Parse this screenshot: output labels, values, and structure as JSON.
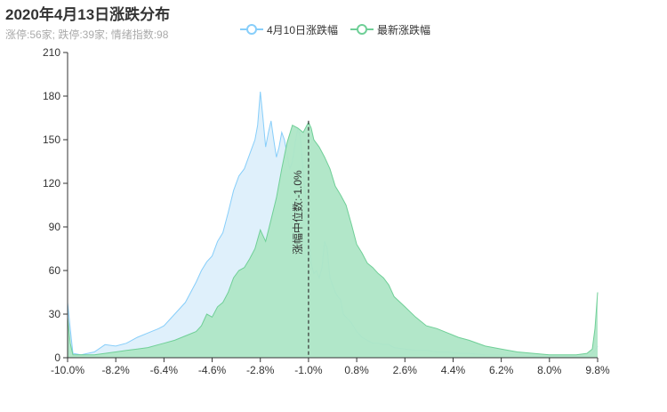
{
  "title": "2020年4月13日涨跌分布",
  "subtitle": "涨停:56家; 跌停:39家; 情绪指数:98",
  "colors": {
    "series1_line": "#87cefa",
    "series1_fill": "#dff0fb",
    "series2_line": "#6fcf97",
    "series2_fill": "#aee6c6",
    "median_line": "#333333",
    "axis": "#333333"
  },
  "legend": [
    {
      "label": "4月10日涨跌幅",
      "icon": "circle-line-icon",
      "color": "#87cefa"
    },
    {
      "label": "最新涨跌幅",
      "icon": "circle-line-icon",
      "color": "#6fcf97"
    }
  ],
  "chart_data": {
    "type": "area",
    "x_tick_labels": [
      "-10.0%",
      "-8.2%",
      "-6.4%",
      "-4.6%",
      "-2.8%",
      "-1.0%",
      "0.8%",
      "2.6%",
      "4.4%",
      "6.2%",
      "8.0%",
      "9.8%"
    ],
    "xlim": [
      -10.0,
      9.8
    ],
    "ylim": [
      0,
      210
    ],
    "y_ticks": [
      0,
      30,
      60,
      90,
      120,
      150,
      180,
      210
    ],
    "grid": false,
    "legend_position": "top-center",
    "median": {
      "x": -1.0,
      "label": "涨幅中位数:-1.0%"
    },
    "series": [
      {
        "name": "4月10日涨跌幅",
        "x": [
          -10.0,
          -9.9,
          -9.8,
          -9.5,
          -9.0,
          -8.6,
          -8.2,
          -7.8,
          -7.4,
          -7.0,
          -6.6,
          -6.4,
          -6.0,
          -5.6,
          -5.2,
          -5.0,
          -4.8,
          -4.6,
          -4.4,
          -4.2,
          -4.0,
          -3.8,
          -3.6,
          -3.4,
          -3.2,
          -3.0,
          -2.9,
          -2.8,
          -2.7,
          -2.6,
          -2.5,
          -2.4,
          -2.3,
          -2.2,
          -2.1,
          -2.0,
          -1.9,
          -1.8,
          -1.7,
          -1.6,
          -1.5,
          -1.4,
          -1.3,
          -1.2,
          -1.1,
          -1.0,
          -0.9,
          -0.8,
          -0.7,
          -0.6,
          -0.5,
          -0.4,
          -0.3,
          -0.2,
          -0.1,
          0.0,
          0.1,
          0.2,
          0.3,
          0.4,
          0.6,
          0.8,
          1.0,
          1.2,
          1.4,
          1.6,
          1.8,
          2.0,
          2.2,
          2.6,
          3.0,
          3.4,
          3.8,
          4.2,
          4.6,
          5.0,
          5.6,
          6.2,
          6.8,
          7.4,
          8.0,
          8.6,
          9.2,
          9.5,
          9.7,
          9.8
        ],
        "y": [
          38,
          20,
          3,
          2,
          4,
          9,
          8,
          10,
          14,
          17,
          20,
          22,
          30,
          38,
          52,
          60,
          66,
          70,
          80,
          86,
          100,
          115,
          125,
          130,
          140,
          150,
          160,
          183,
          165,
          145,
          155,
          163,
          150,
          138,
          145,
          155,
          150,
          140,
          130,
          135,
          148,
          158,
          152,
          128,
          110,
          85,
          65,
          58,
          60,
          55,
          62,
          80,
          75,
          55,
          50,
          45,
          42,
          40,
          30,
          28,
          24,
          18,
          14,
          12,
          10,
          10,
          9,
          9,
          7,
          6,
          5,
          5,
          4,
          4,
          3,
          3,
          2,
          2,
          2,
          1,
          1,
          1,
          1,
          1,
          5,
          8
        ]
      },
      {
        "name": "最新涨跌幅",
        "x": [
          -10.0,
          -9.9,
          -9.8,
          -9.5,
          -9.0,
          -8.6,
          -8.2,
          -7.8,
          -7.4,
          -7.0,
          -6.6,
          -6.4,
          -6.0,
          -5.6,
          -5.2,
          -5.0,
          -4.8,
          -4.6,
          -4.4,
          -4.2,
          -4.0,
          -3.8,
          -3.6,
          -3.4,
          -3.2,
          -3.0,
          -2.8,
          -2.6,
          -2.4,
          -2.2,
          -2.0,
          -1.8,
          -1.6,
          -1.4,
          -1.2,
          -1.0,
          -0.9,
          -0.8,
          -0.6,
          -0.4,
          -0.2,
          0.0,
          0.2,
          0.4,
          0.6,
          0.8,
          1.0,
          1.2,
          1.4,
          1.6,
          1.8,
          2.0,
          2.2,
          2.6,
          3.0,
          3.4,
          3.8,
          4.2,
          4.6,
          5.0,
          5.6,
          6.2,
          6.8,
          7.4,
          8.0,
          8.6,
          9.0,
          9.4,
          9.6,
          9.7,
          9.8
        ],
        "y": [
          28,
          10,
          2,
          2,
          2,
          3,
          4,
          5,
          6,
          7,
          9,
          10,
          12,
          15,
          18,
          22,
          30,
          28,
          35,
          38,
          45,
          55,
          60,
          62,
          68,
          75,
          88,
          80,
          95,
          110,
          130,
          148,
          160,
          158,
          155,
          162,
          158,
          150,
          145,
          138,
          130,
          118,
          112,
          105,
          92,
          78,
          72,
          65,
          62,
          58,
          55,
          50,
          42,
          35,
          28,
          22,
          20,
          17,
          14,
          12,
          8,
          6,
          4,
          3,
          2,
          2,
          2,
          3,
          6,
          20,
          45
        ]
      }
    ]
  }
}
